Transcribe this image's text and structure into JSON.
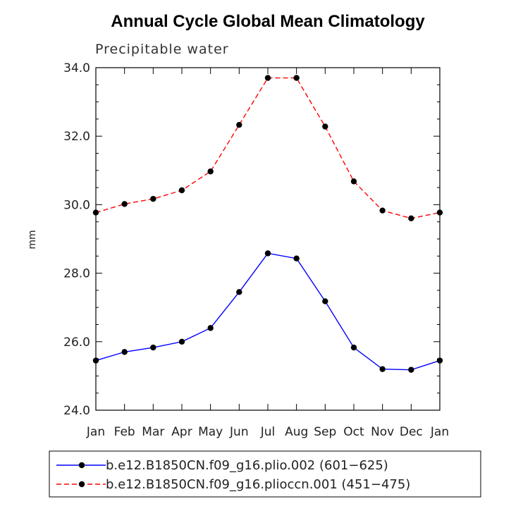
{
  "chart_data": {
    "type": "line",
    "title": "Annual Cycle Global Mean Climatology",
    "subtitle": "Precipitable water",
    "xlabel": "",
    "ylabel": "mm",
    "categories": [
      "Jan",
      "Feb",
      "Mar",
      "Apr",
      "May",
      "Jun",
      "Jul",
      "Aug",
      "Sep",
      "Oct",
      "Nov",
      "Dec",
      "Jan"
    ],
    "ylim": [
      24.0,
      34.0
    ],
    "yticks": [
      "24.0",
      "26.0",
      "28.0",
      "30.0",
      "32.0",
      "34.0"
    ],
    "series": [
      {
        "name": "b.e12.B1850CN.f09_g16.plio.002 (601-625)",
        "legend_label": "b.e12.B1850CN.f09_g16.plio.002 (601−625)",
        "color": "#0000ff",
        "style": "solid",
        "values": [
          25.45,
          25.7,
          25.83,
          26.0,
          26.4,
          27.45,
          28.58,
          28.43,
          27.18,
          25.83,
          25.2,
          25.18,
          25.45
        ]
      },
      {
        "name": "b.e12.B1850CN.f09_g16.plioccn.001 (451-475)",
        "legend_label": "b.e12.B1850CN.f09_g16.plioccn.001 (451−475)",
        "color": "#ff0000",
        "style": "dashed",
        "values": [
          29.77,
          30.02,
          30.17,
          30.42,
          30.97,
          32.33,
          33.7,
          33.7,
          32.28,
          30.68,
          29.83,
          29.6,
          29.77
        ]
      }
    ],
    "marker_color": "#000000",
    "legend_position": "bottom"
  }
}
